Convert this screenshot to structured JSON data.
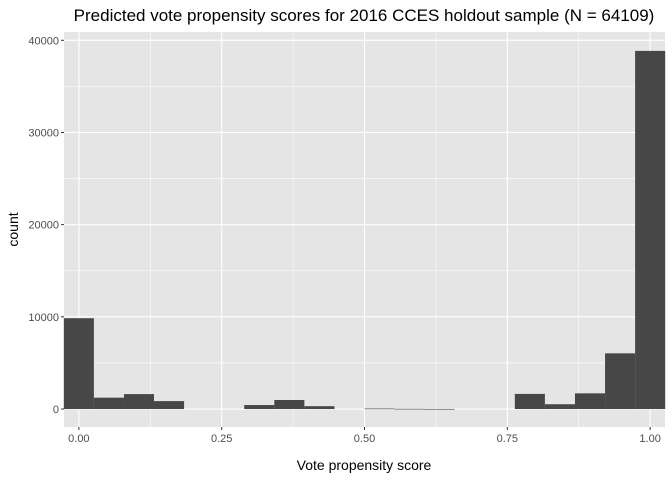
{
  "chart_data": {
    "type": "bar",
    "title": "Predicted vote propensity scores for 2016 CCES holdout sample (N = 64109)",
    "xlabel": "Vote propensity score",
    "ylabel": "count",
    "xlim": [
      -0.026,
      1.026
    ],
    "ylim": [
      -1950,
      40900
    ],
    "xticks": [
      0,
      0.25,
      0.5,
      0.75,
      1
    ],
    "xtick_labels": [
      "0.00",
      "0.25",
      "0.50",
      "0.75",
      "1.00"
    ],
    "yticks": [
      0,
      10000,
      20000,
      30000,
      40000
    ],
    "ytick_labels": [
      "0",
      "10000",
      "20000",
      "30000",
      "40000"
    ],
    "grid": true,
    "colors": {
      "panel": "#e5e5e5",
      "grid": "#ffffff",
      "bar": "#474747",
      "tick_text": "#4d4d4d"
    },
    "bins": [
      {
        "x0": -0.02632,
        "x1": 0.02632,
        "count": 9850
      },
      {
        "x0": 0.02632,
        "x1": 0.07895,
        "count": 1230
      },
      {
        "x0": 0.07895,
        "x1": 0.13158,
        "count": 1620
      },
      {
        "x0": 0.13158,
        "x1": 0.18421,
        "count": 860
      },
      {
        "x0": 0.18421,
        "x1": 0.23684,
        "count": 0
      },
      {
        "x0": 0.23684,
        "x1": 0.28947,
        "count": 0
      },
      {
        "x0": 0.28947,
        "x1": 0.34211,
        "count": 430
      },
      {
        "x0": 0.34211,
        "x1": 0.39474,
        "count": 980
      },
      {
        "x0": 0.39474,
        "x1": 0.44737,
        "count": 310
      },
      {
        "x0": 0.44737,
        "x1": 0.5,
        "count": 0
      },
      {
        "x0": 0.5,
        "x1": 0.55263,
        "count": 50
      },
      {
        "x0": 0.55263,
        "x1": 0.60526,
        "count": 20
      },
      {
        "x0": 0.60526,
        "x1": 0.65789,
        "count": 10
      },
      {
        "x0": 0.65789,
        "x1": 0.71053,
        "count": 0
      },
      {
        "x0": 0.71053,
        "x1": 0.76316,
        "count": 0
      },
      {
        "x0": 0.76316,
        "x1": 0.81579,
        "count": 1640
      },
      {
        "x0": 0.81579,
        "x1": 0.86842,
        "count": 520
      },
      {
        "x0": 0.86842,
        "x1": 0.92105,
        "count": 1700
      },
      {
        "x0": 0.92105,
        "x1": 0.97368,
        "count": 6040
      },
      {
        "x0": 0.97368,
        "x1": 1.02632,
        "count": 38850
      }
    ]
  }
}
